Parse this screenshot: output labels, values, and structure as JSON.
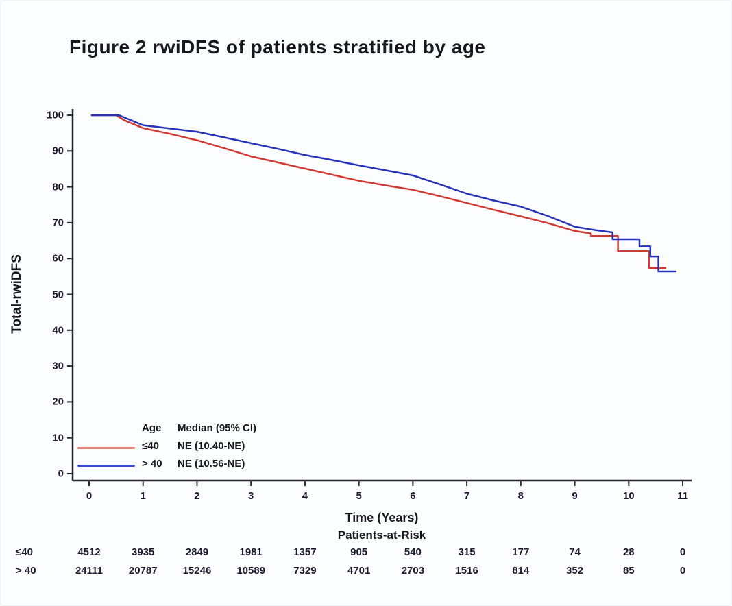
{
  "chart_data": {
    "type": "line",
    "subtype": "kaplan-meier-step",
    "title": "Figure 2  rwiDFS of patients stratified by age",
    "xlabel": "Time (Years)",
    "ylabel": "Total-rwiDFS",
    "xlim": [
      0,
      11
    ],
    "ylim": [
      0,
      100
    ],
    "x_ticks": [
      0,
      1,
      2,
      3,
      4,
      5,
      6,
      7,
      8,
      9,
      10,
      11
    ],
    "y_ticks": [
      0,
      10,
      20,
      30,
      40,
      50,
      60,
      70,
      80,
      90,
      100
    ],
    "grid": false,
    "axis_color": "#26262e",
    "legend": {
      "position": "inside-bottom-left",
      "header_age": "Age",
      "header_median": "Median (95% CI)",
      "entries": [
        {
          "label": "≤40",
          "median": "NE (10.40-NE)",
          "swatch_color": "#ee7d74"
        },
        {
          "label": "> 40",
          "median": "NE (10.56-NE)",
          "swatch_color": "#3a4fd0"
        }
      ]
    },
    "series": [
      {
        "name": "≤40",
        "color": "#d13a32",
        "points": [
          [
            0.05,
            100
          ],
          [
            0.5,
            100
          ],
          [
            0.65,
            98.6
          ],
          [
            1,
            96.4
          ],
          [
            1.5,
            94.8
          ],
          [
            2,
            93.0
          ],
          [
            2.5,
            90.8
          ],
          [
            3,
            88.5
          ],
          [
            3.5,
            86.8
          ],
          [
            4,
            85.1
          ],
          [
            4.5,
            83.4
          ],
          [
            5,
            81.7
          ],
          [
            5.5,
            80.4
          ],
          [
            6,
            79.2
          ],
          [
            6.5,
            77.4
          ],
          [
            7,
            75.5
          ],
          [
            7.5,
            73.6
          ],
          [
            8,
            71.8
          ],
          [
            8.5,
            69.9
          ],
          [
            9,
            67.7
          ],
          [
            9.3,
            67.0
          ],
          [
            9.3,
            66.3
          ],
          [
            9.8,
            66.3
          ],
          [
            9.8,
            62.1
          ],
          [
            10.38,
            62.1
          ],
          [
            10.38,
            57.4
          ],
          [
            10.68,
            57.4
          ]
        ]
      },
      {
        "name": "> 40",
        "color": "#2433b8",
        "points": [
          [
            0.05,
            100
          ],
          [
            0.55,
            100
          ],
          [
            1,
            97.2
          ],
          [
            1.5,
            96.3
          ],
          [
            2,
            95.4
          ],
          [
            2.5,
            93.8
          ],
          [
            3,
            92.2
          ],
          [
            3.5,
            90.6
          ],
          [
            4,
            88.9
          ],
          [
            4.5,
            87.5
          ],
          [
            5,
            86.0
          ],
          [
            5.5,
            84.6
          ],
          [
            6,
            83.2
          ],
          [
            6.5,
            80.7
          ],
          [
            7,
            78.1
          ],
          [
            7.5,
            76.2
          ],
          [
            8,
            74.5
          ],
          [
            8.5,
            71.9
          ],
          [
            9,
            68.9
          ],
          [
            9.4,
            67.9
          ],
          [
            9.7,
            67.3
          ],
          [
            9.7,
            65.4
          ],
          [
            10.2,
            65.4
          ],
          [
            10.2,
            63.4
          ],
          [
            10.4,
            63.4
          ],
          [
            10.4,
            60.6
          ],
          [
            10.55,
            60.6
          ],
          [
            10.55,
            56.4
          ],
          [
            10.87,
            56.4
          ]
        ]
      }
    ],
    "at_risk": {
      "header": "Patients-at-Risk",
      "times": [
        0,
        1,
        2,
        3,
        4,
        5,
        6,
        7,
        8,
        9,
        10,
        11
      ],
      "rows": [
        {
          "label": "≤40",
          "counts": [
            4512,
            3935,
            2849,
            1981,
            1357,
            905,
            540,
            315,
            177,
            74,
            28,
            0
          ]
        },
        {
          "label": "> 40",
          "counts": [
            24111,
            20787,
            15246,
            10589,
            7329,
            4701,
            2703,
            1516,
            814,
            352,
            85,
            0
          ]
        }
      ]
    }
  }
}
